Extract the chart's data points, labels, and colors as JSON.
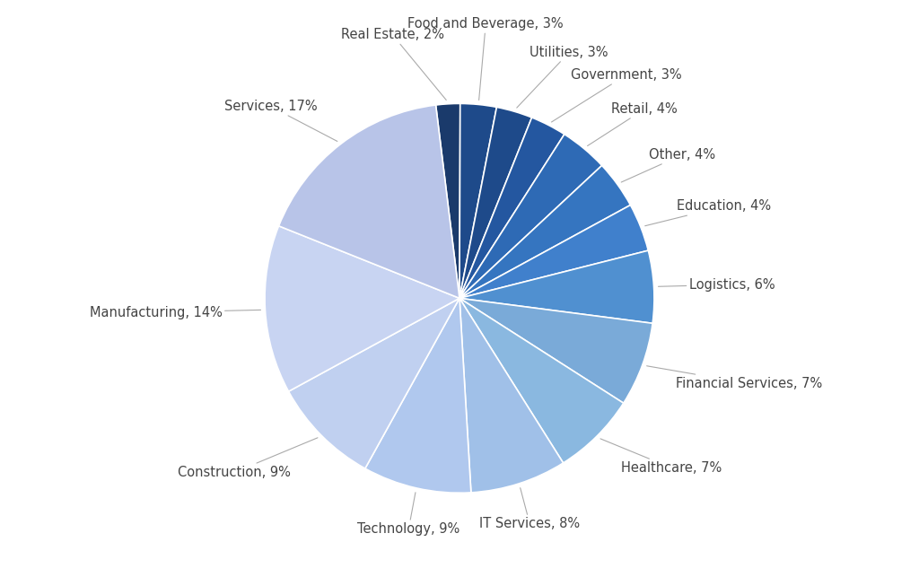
{
  "sectors": [
    "Real Estate",
    "Food and Beverage",
    "Utilities",
    "Government",
    "Retail",
    "Other",
    "Education",
    "Logistics",
    "Financial Services",
    "Healthcare",
    "IT Services",
    "Technology",
    "Construction",
    "Manufacturing",
    "Services"
  ],
  "values": [
    2,
    3,
    3,
    3,
    4,
    4,
    4,
    6,
    7,
    7,
    8,
    9,
    9,
    14,
    17
  ],
  "colors": [
    "#1a3a6b",
    "#1e4a8a",
    "#1e4a8a",
    "#2457a0",
    "#2e6ab5",
    "#3575c0",
    "#4080cc",
    "#5090d0",
    "#7aaad8",
    "#8ab8e0",
    "#a0c0e8",
    "#b0c8ee",
    "#c0d0f0",
    "#c8d4f2",
    "#b8c4e8"
  ],
  "wedge_edge_color": "white",
  "wedge_edge_width": 1.2,
  "label_fontsize": 10.5,
  "label_color": "#444444",
  "background_color": "#ffffff",
  "startangle": 97,
  "line_color": "#aaaaaa",
  "line_width": 0.8
}
